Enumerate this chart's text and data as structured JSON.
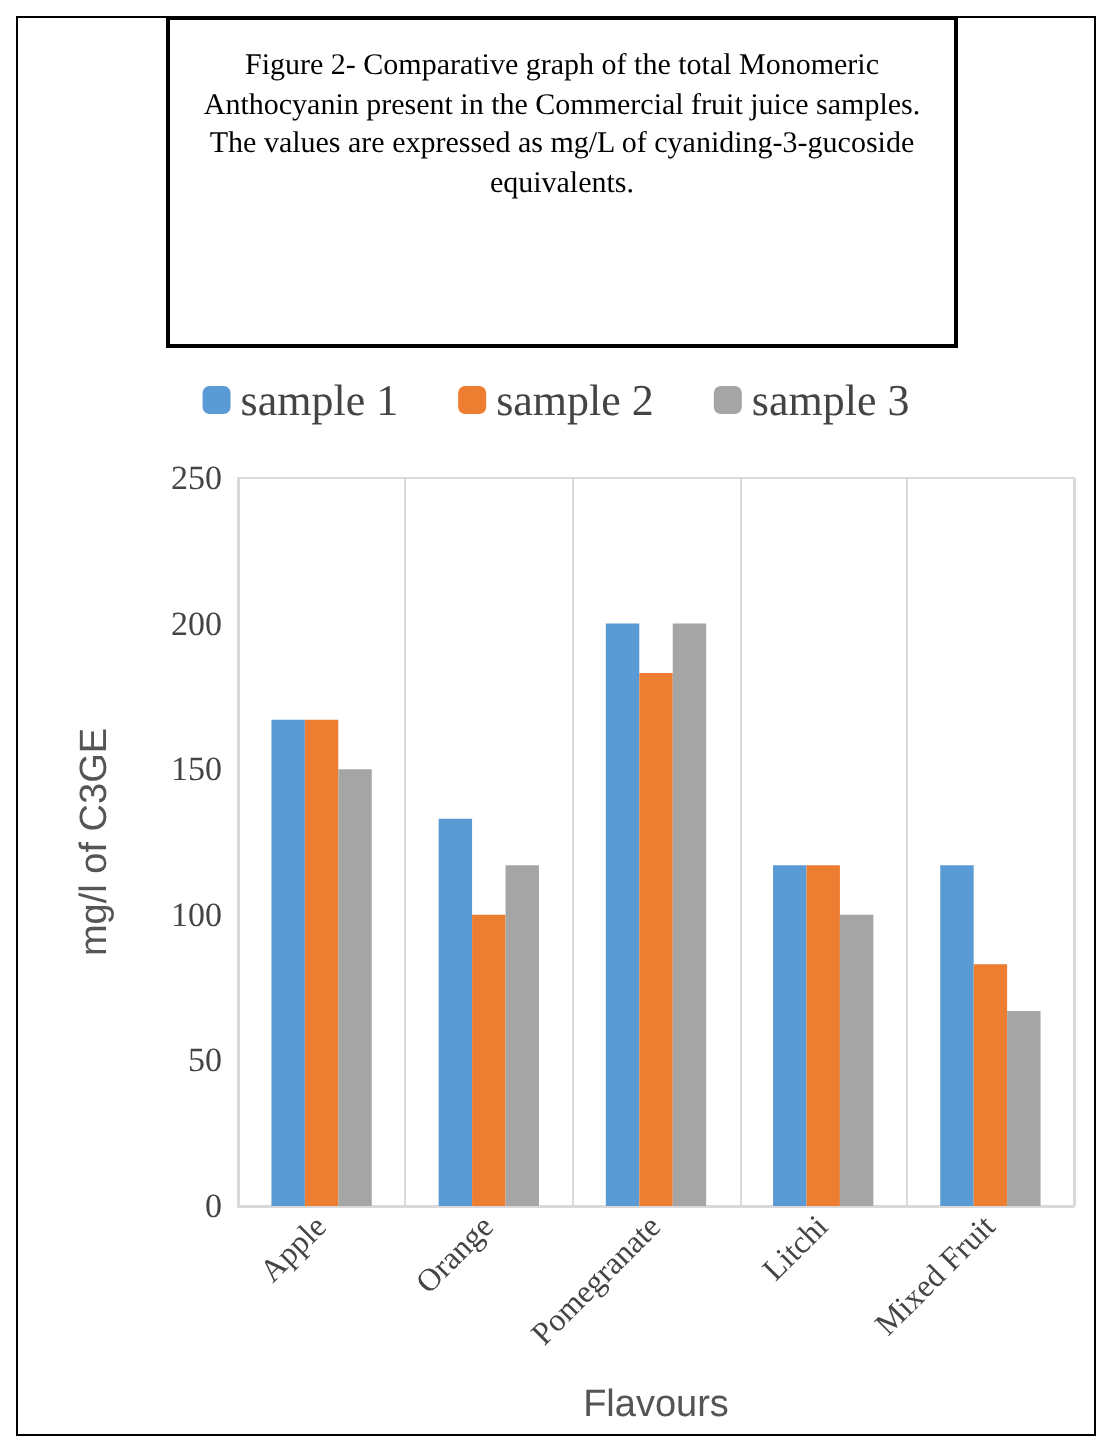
{
  "chart_data": {
    "type": "bar",
    "title": "Figure 2- Comparative graph of the total Monomeric Anthocyanin present in the Commercial fruit juice samples. The values are expressed as mg/L of cyaniding-3-gucoside equivalents.",
    "xlabel": "Flavours",
    "ylabel": "mg/l of C3GE",
    "categories": [
      "Apple",
      "Orange",
      "Pomegranate",
      "Litchi",
      "Mixed Fruit"
    ],
    "series": [
      {
        "name": "sample 1",
        "color": "#5b9bd5",
        "values": [
          167,
          133,
          200,
          117,
          117
        ]
      },
      {
        "name": "sample 2",
        "color": "#ed7d31",
        "values": [
          167,
          100,
          183,
          117,
          83
        ]
      },
      {
        "name": "sample 3",
        "color": "#a5a5a5",
        "values": [
          150,
          117,
          200,
          100,
          67
        ]
      }
    ],
    "ylim": [
      0,
      250
    ],
    "yticks": [
      0,
      50,
      100,
      150,
      200,
      250
    ],
    "grid": "x",
    "legend": "top"
  }
}
